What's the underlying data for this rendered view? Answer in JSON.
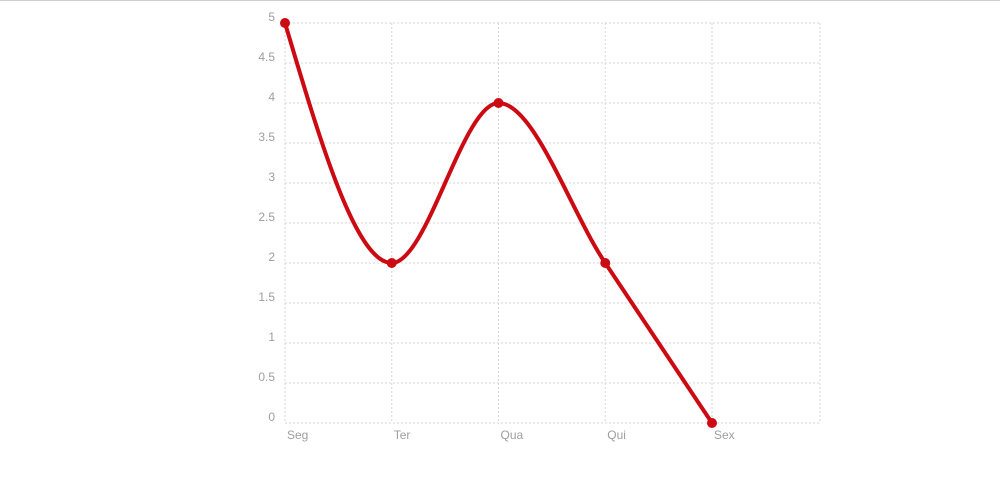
{
  "colors": {
    "line": "#cc0a12",
    "grid": "#d6d6d6",
    "tick_text": "#9e9e9e",
    "background": "#ffffff"
  },
  "chart_data": {
    "type": "line",
    "categories": [
      "Seg",
      "Ter",
      "Qua",
      "Qui",
      "Sex"
    ],
    "series": [
      {
        "values": [
          5,
          2,
          4,
          2,
          0
        ]
      }
    ],
    "ylim": [
      0,
      5
    ],
    "yticks": [
      0,
      0.5,
      1,
      1.5,
      2,
      2.5,
      3,
      3.5,
      4,
      4.5,
      5
    ],
    "ytick_labels": [
      "0",
      "0.5",
      "1",
      "1.5",
      "2",
      "2.5",
      "3",
      "3.5",
      "4",
      "4.5",
      "5"
    ],
    "grid": true,
    "grid_style": "dotted",
    "smooth": "monotone",
    "legend": "none"
  }
}
